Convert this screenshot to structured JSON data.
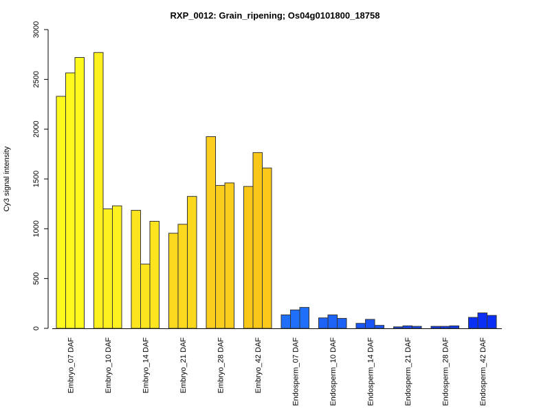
{
  "chart_data": {
    "type": "bar",
    "title": "RXP_0012: Grain_ripening; Os04g0101800_18758",
    "xlabel": "",
    "ylabel": "Cy3 signal intensity",
    "ylim": [
      0,
      3000
    ],
    "yticks": [
      0,
      500,
      1000,
      1500,
      2000,
      2500,
      3000
    ],
    "grid": false,
    "legend": "none",
    "categories": [
      "Embryo_07 DAF",
      "Embryo_10 DAF",
      "Embryo_14 DAF",
      "Embryo_21 DAF",
      "Embryo_28 DAF",
      "Embryo_42 DAF",
      "Endosperm_07 DAF",
      "Endosperm_10 DAF",
      "Endosperm_14 DAF",
      "Endosperm_21 DAF",
      "Endosperm_28 DAF",
      "Endosperm_42 DAF"
    ],
    "values": [
      [
        2330,
        2565,
        2720
      ],
      [
        2770,
        1200,
        1230
      ],
      [
        1185,
        645,
        1075
      ],
      [
        955,
        1045,
        1325
      ],
      [
        1925,
        1435,
        1460
      ],
      [
        1425,
        1765,
        1610
      ],
      [
        135,
        185,
        210
      ],
      [
        105,
        135,
        100
      ],
      [
        50,
        90,
        30
      ],
      [
        15,
        25,
        20
      ],
      [
        20,
        20,
        25
      ],
      [
        110,
        155,
        130
      ]
    ],
    "colors": [
      "#fffa1e",
      "#fdf01e",
      "#fce41e",
      "#fbd81d",
      "#fbcd1c",
      "#fbc81a",
      "#1f6ff8",
      "#1d63f8",
      "#1a56f7",
      "#1749f6",
      "#113cf5",
      "#0a30f5"
    ]
  }
}
